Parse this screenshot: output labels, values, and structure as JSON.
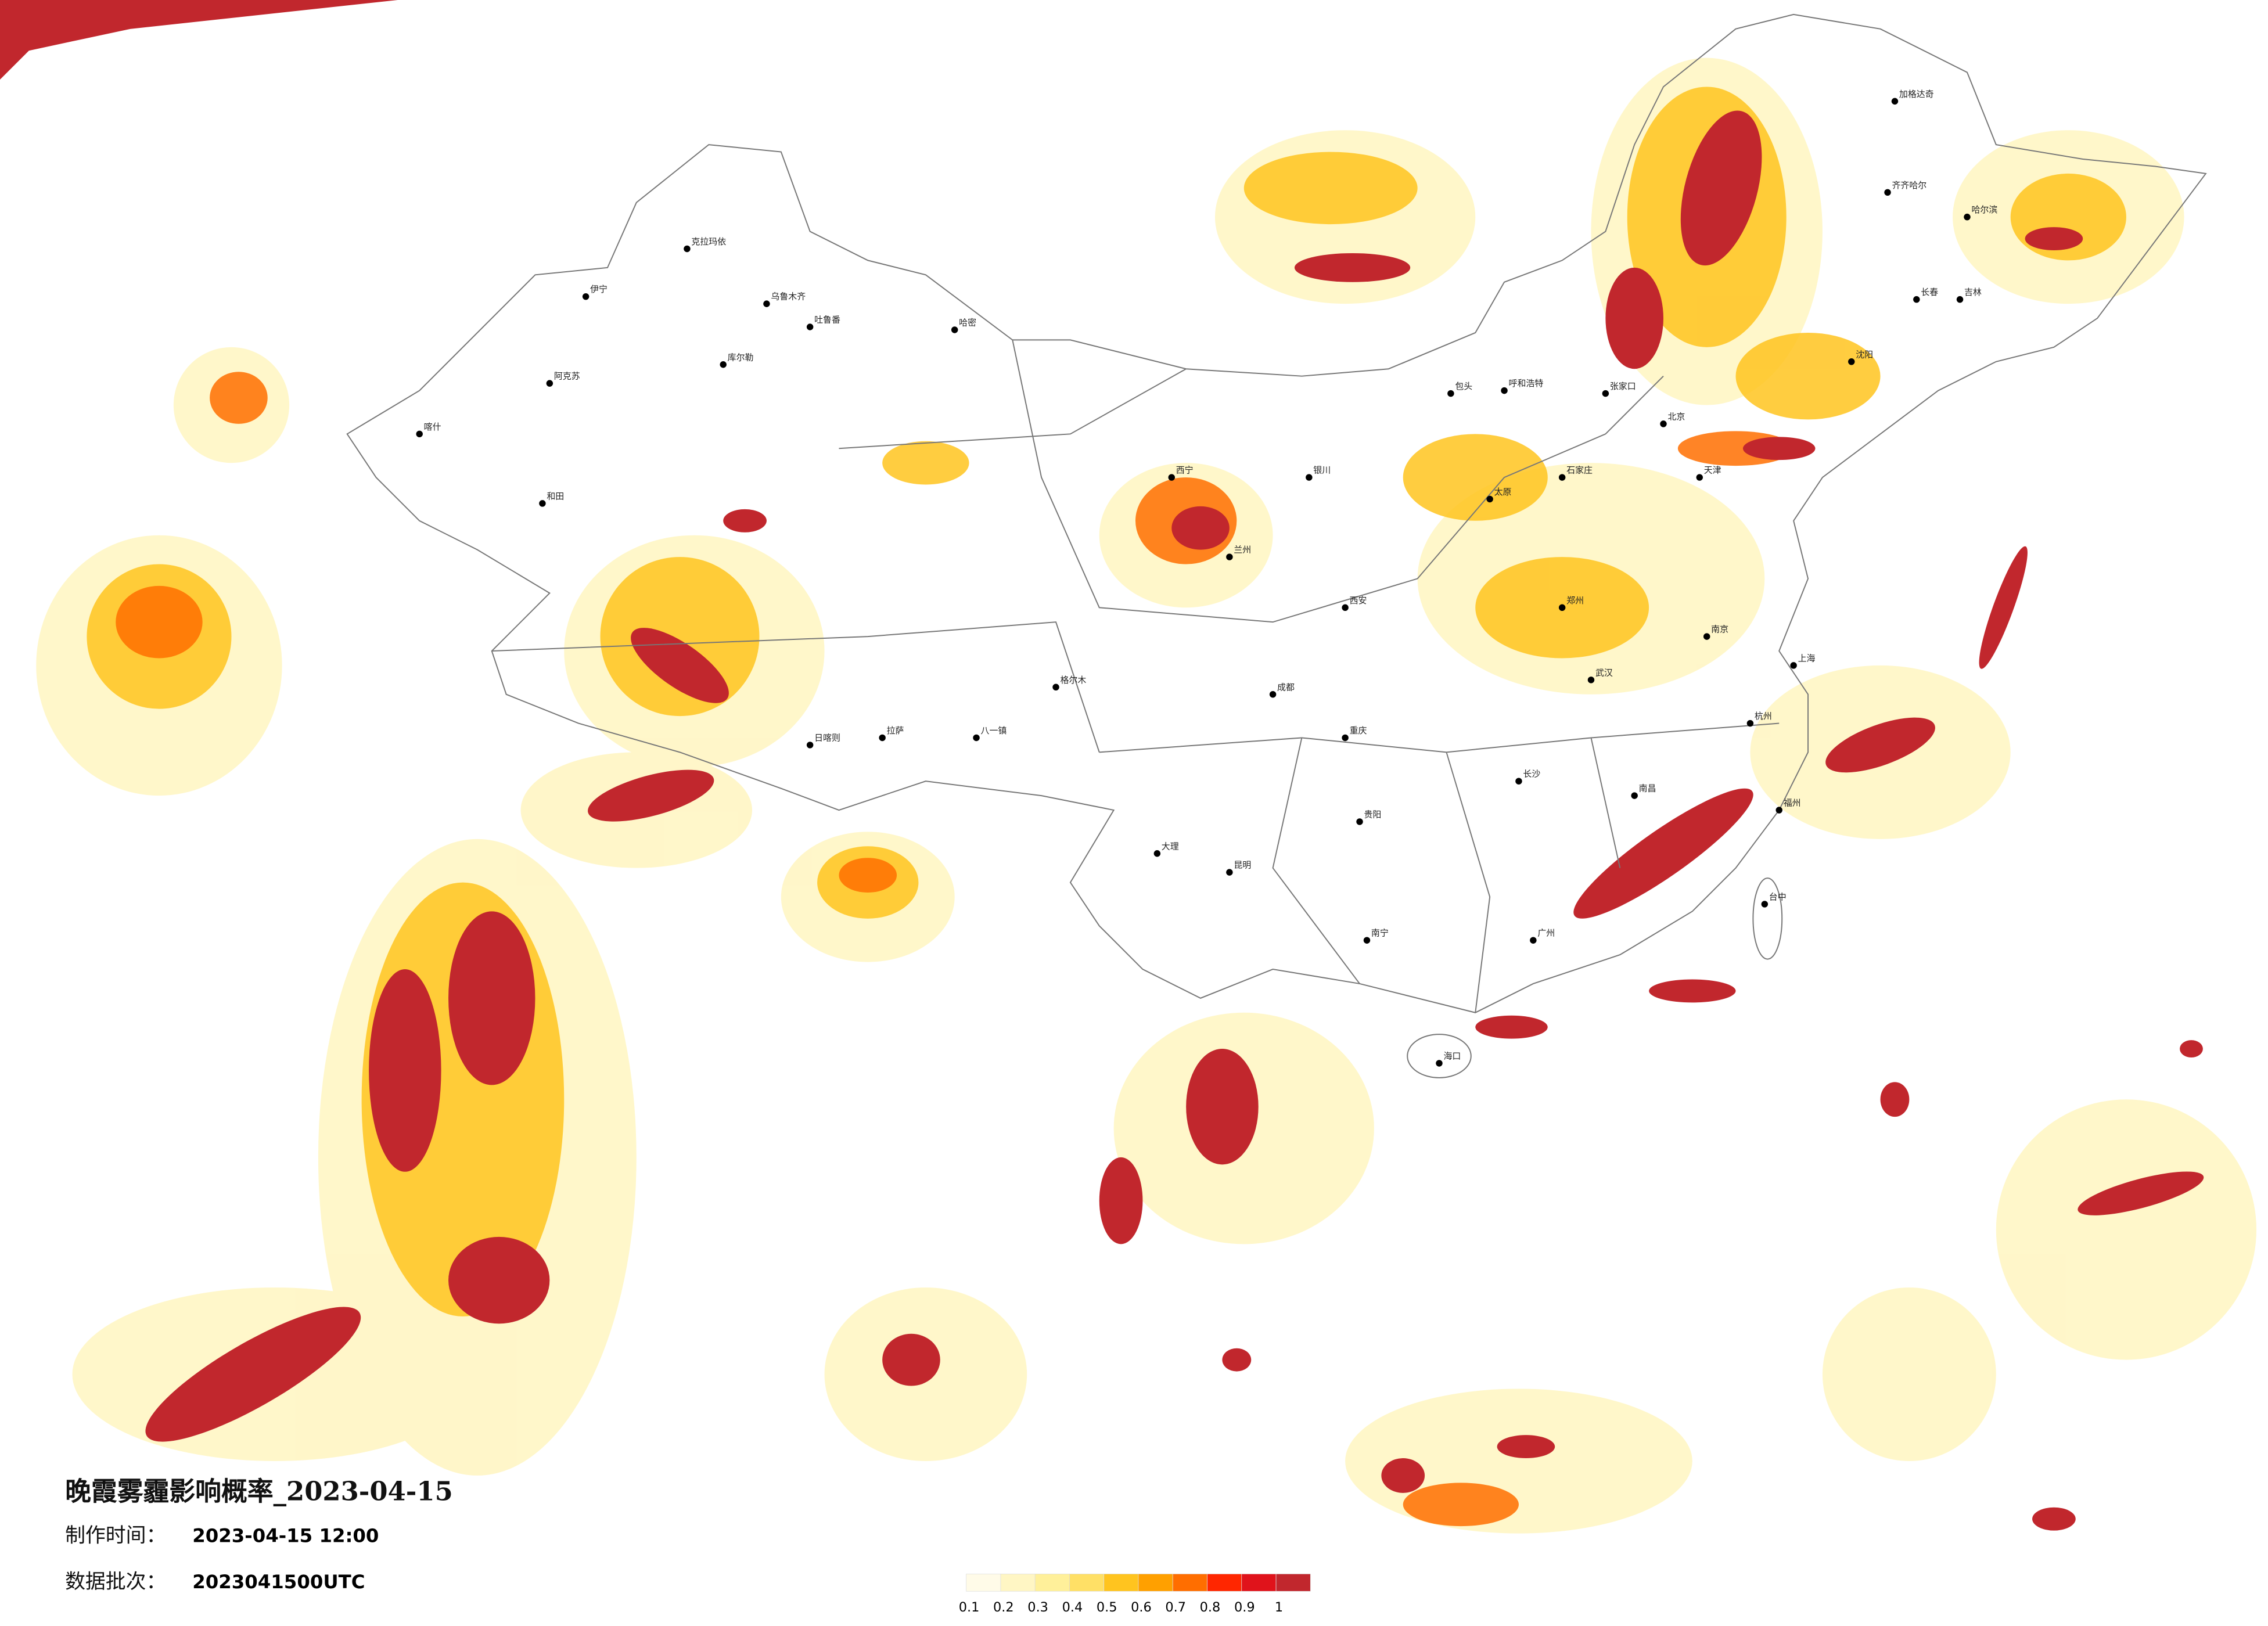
{
  "header": {
    "title": "晚霞雾霾影响概率_2023-04-15",
    "made_label": "制作时间：",
    "made_time": "2023-04-15 12:00",
    "batch_label": "数据批次：",
    "batch": "2023041500UTC"
  },
  "legend": {
    "ticks": [
      0.1,
      0.2,
      0.3,
      0.4,
      0.5,
      0.6,
      0.7,
      0.8,
      0.9,
      1
    ],
    "colors": [
      "#fffbe8",
      "#fff6c4",
      "#fff09a",
      "#ffe066",
      "#ffc41f",
      "#ffa000",
      "#ff6e00",
      "#ff2600",
      "#e0131b",
      "#c1272d"
    ]
  },
  "cities": [
    "克拉玛依",
    "乌鲁木齐",
    "吐鲁番",
    "哈密",
    "阿克苏",
    "喀什",
    "和田",
    "伊宁",
    "库尔勒",
    "日喀则",
    "拉萨",
    "八一镇",
    "格尔木",
    "西宁",
    "兰州",
    "银川",
    "呼和浩特",
    "包头",
    "张家口",
    "北京",
    "天津",
    "齐齐哈尔",
    "加格达奇",
    "哈尔滨",
    "长春",
    "吉林",
    "沈阳",
    "石家庄",
    "太原",
    "郑州",
    "西安",
    "成都",
    "重庆",
    "昆明",
    "大理",
    "贵阳",
    "南宁",
    "长沙",
    "武汉",
    "南昌",
    "南京",
    "上海",
    "杭州",
    "福州",
    "广州",
    "台中",
    "海口"
  ]
}
